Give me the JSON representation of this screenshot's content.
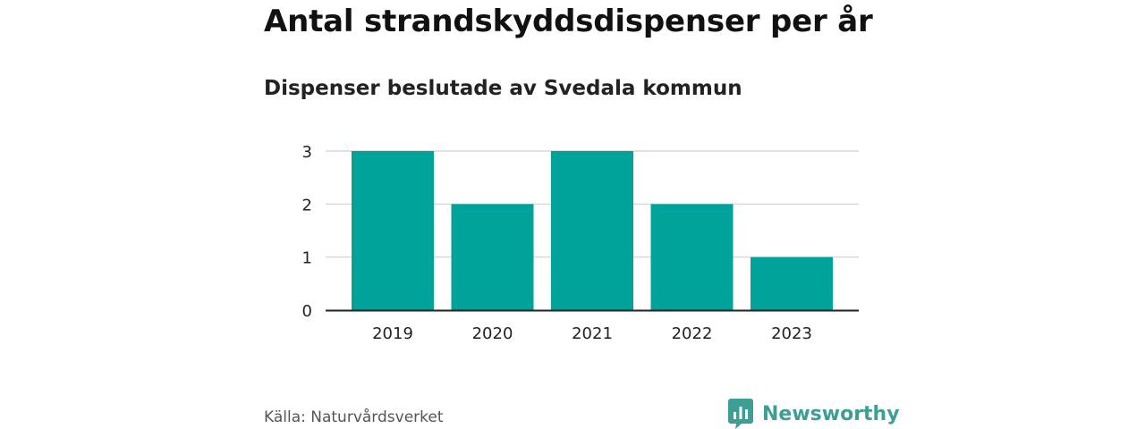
{
  "header": {
    "title": "Antal strandskyddsdispenser per år",
    "subtitle": "Dispenser beslutade av Svedala kommun"
  },
  "chart_data": {
    "type": "bar",
    "categories": [
      "2019",
      "2020",
      "2021",
      "2022",
      "2023"
    ],
    "values": [
      3,
      2,
      3,
      2,
      1
    ],
    "title": "Antal strandskyddsdispenser per år",
    "subtitle": "Dispenser beslutade av Svedala kommun",
    "xlabel": "",
    "ylabel": "",
    "ylim": [
      0,
      3
    ],
    "yticks": [
      0,
      1,
      2,
      3
    ],
    "grid": true,
    "legend": "none"
  },
  "footer": {
    "source": "Källa: Naturvårdsverket",
    "brand": "Newsworthy",
    "brand_icon": "bar-chart-speech-bubble-icon"
  },
  "colors": {
    "bar": "#00A39A",
    "grid": "#d9d9d9",
    "axis": "#222222",
    "brand": "#3d9e95"
  }
}
